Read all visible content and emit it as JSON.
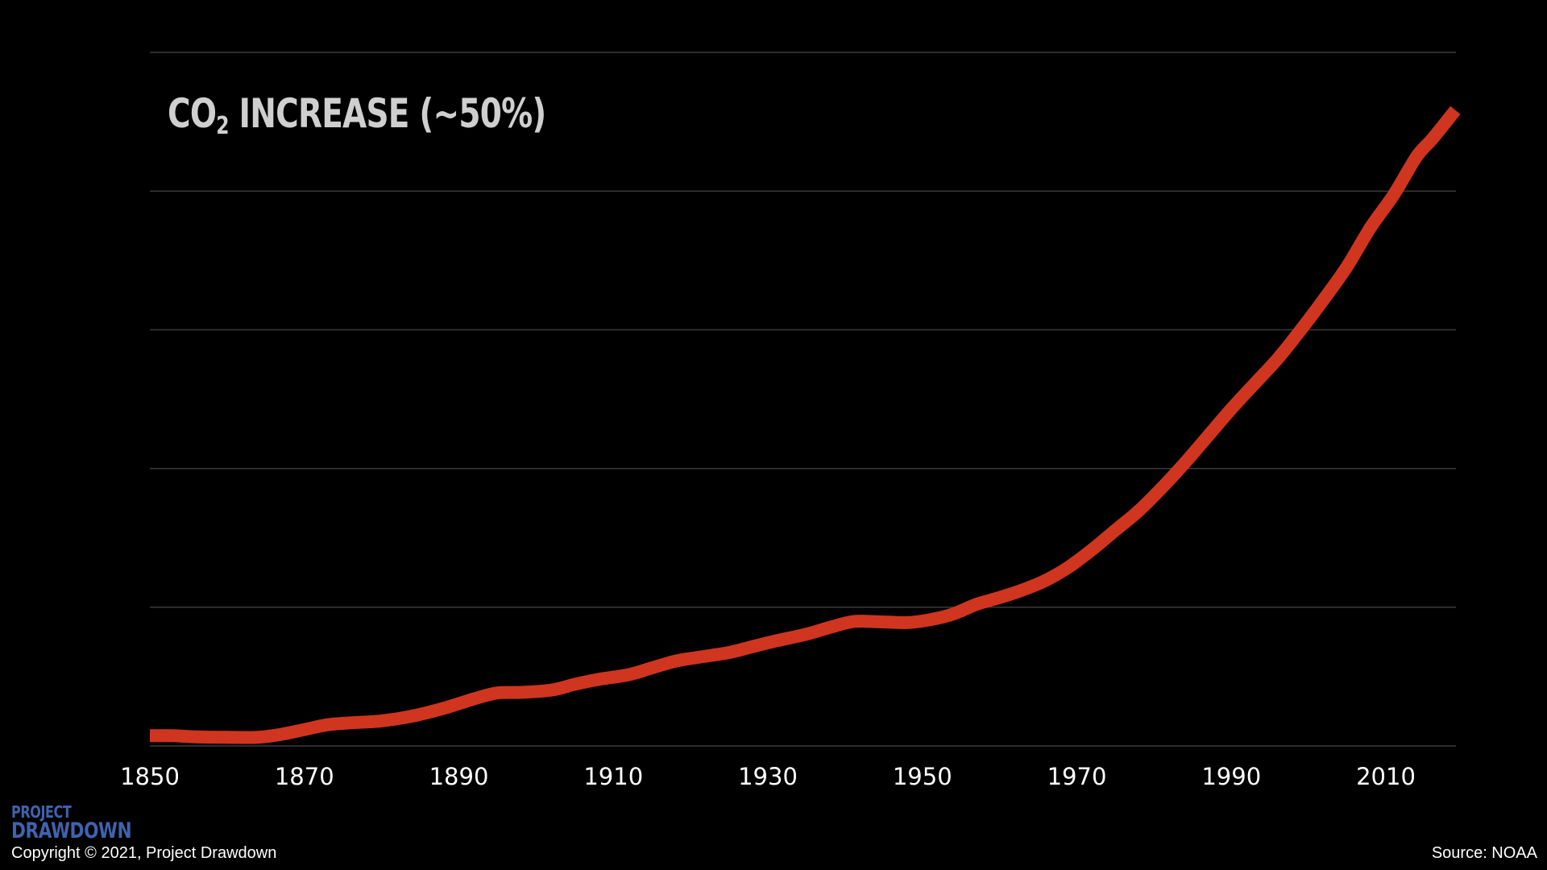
{
  "title": {
    "main": "CO",
    "sub": "2",
    "rest": " INCREASE (~50%)"
  },
  "footer": {
    "logo_top": "PROJECT",
    "logo_bottom": "DRAWDOWN",
    "copyright": "Copyright © 2021, Project Drawdown",
    "source": "Source: NOAA"
  },
  "colors": {
    "background": "#000000",
    "line": "#d0351f",
    "grid": "#3a3a3a",
    "logo": "#3f63ae"
  },
  "chart_data": {
    "type": "line",
    "title": "CO2 INCREASE (~50%)",
    "xlabel": "",
    "ylabel": "",
    "xlim": [
      1850,
      2019
    ],
    "xticks": [
      "1850",
      "1870",
      "1890",
      "1910",
      "1930",
      "1950",
      "1970",
      "1990",
      "2010"
    ],
    "yticks_labeled": false,
    "grid": true,
    "legend": "none",
    "series": [
      {
        "x": [
          1850,
          1853,
          1856,
          1860,
          1864,
          1867,
          1870,
          1873,
          1876,
          1880,
          1884,
          1888,
          1892,
          1895,
          1898,
          1902,
          1905,
          1908,
          1912,
          1915,
          1918,
          1921,
          1925,
          1928,
          1931,
          1935,
          1938,
          1941,
          1944,
          1948,
          1951,
          1954,
          1957,
          1960,
          1963,
          1966,
          1969,
          1972,
          1975,
          1978,
          1981,
          1984,
          1987,
          1990,
          1993,
          1996,
          1999,
          2002,
          2005,
          2008,
          2011,
          2014,
          2016,
          2019
        ],
        "values": [
          0.53,
          0.53,
          0.47,
          0.45,
          0.45,
          0.6,
          0.85,
          1.1,
          1.2,
          1.3,
          1.55,
          1.95,
          2.45,
          2.75,
          2.78,
          2.9,
          3.2,
          3.45,
          3.7,
          4.05,
          4.4,
          4.6,
          4.85,
          5.15,
          5.45,
          5.8,
          6.15,
          6.45,
          6.45,
          6.4,
          6.55,
          6.85,
          7.35,
          7.7,
          8.1,
          8.6,
          9.3,
          10.2,
          11.2,
          12.2,
          13.4,
          14.7,
          16.1,
          17.5,
          18.8,
          20.1,
          21.6,
          23.2,
          24.9,
          26.9,
          28.6,
          30.6,
          31.5,
          33.0
        ]
      }
    ]
  }
}
